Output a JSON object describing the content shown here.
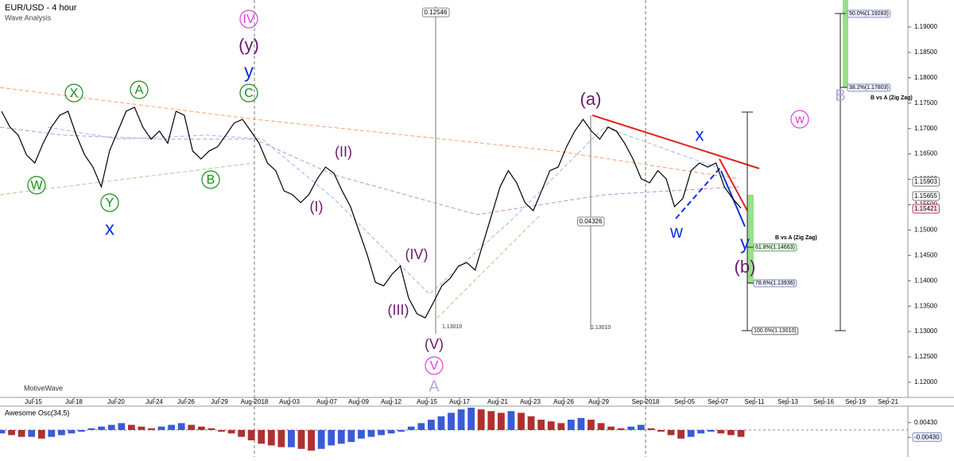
{
  "header": {
    "title": "EUR/USD - 4 hour",
    "subtitle": "Wave Analysis",
    "brand": "MotiveWave"
  },
  "chart_data": [
    {
      "type": "line",
      "color": "#000000",
      "values": [
        1.1734,
        1.1703,
        1.1687,
        1.1648,
        1.1632,
        1.1671,
        1.1703,
        1.1726,
        1.1734,
        1.1687,
        1.1648,
        1.1624,
        1.1585,
        1.1656,
        1.1695,
        1.1734,
        1.1742,
        1.1703,
        1.1679,
        1.1695,
        1.1671,
        1.1734,
        1.1726,
        1.1656,
        1.164,
        1.1656,
        1.1664,
        1.1687,
        1.1711,
        1.1718,
        1.1695,
        1.1671,
        1.1632,
        1.1617,
        1.1577,
        1.157,
        1.1554,
        1.157,
        1.1601,
        1.1624,
        1.1612,
        1.1577,
        1.1546,
        1.1499,
        1.1452,
        1.1397,
        1.139,
        1.1413,
        1.1429,
        1.1366,
        1.1335,
        1.1327,
        1.1358,
        1.139,
        1.1405,
        1.1429,
        1.1436,
        1.1421,
        1.1476,
        1.153,
        1.1585,
        1.1617,
        1.1593,
        1.1554,
        1.1538,
        1.1577,
        1.1617,
        1.1624,
        1.1664,
        1.1695,
        1.1718,
        1.1695,
        1.1679,
        1.1703,
        1.1695,
        1.1671,
        1.164,
        1.1601,
        1.1593,
        1.1617,
        1.1601,
        1.1546,
        1.1562,
        1.1617,
        1.1632,
        1.1624,
        1.1632,
        1.1585,
        1.1562,
        1.1543
      ],
      "ylim": [
        1.11702,
        1.19532
      ],
      "yticks": [
        {
          "value": 1.12,
          "label": "1.12000"
        },
        {
          "value": 1.125,
          "label": "1.12500"
        },
        {
          "value": 1.13,
          "label": "1.13000"
        },
        {
          "value": 1.135,
          "label": "1.13500"
        },
        {
          "value": 1.14,
          "label": "1.14000"
        },
        {
          "value": 1.145,
          "label": "1.14500"
        },
        {
          "value": 1.15,
          "label": "1.15000"
        },
        {
          "value": 1.155,
          "label": "1.15500"
        },
        {
          "value": 1.16,
          "label": "1.16000"
        },
        {
          "value": 1.165,
          "label": "1.16500"
        },
        {
          "value": 1.17,
          "label": "1.17000"
        },
        {
          "value": 1.175,
          "label": "1.17500"
        },
        {
          "value": 1.18,
          "label": "1.18000"
        },
        {
          "value": 1.185,
          "label": "1.18500"
        },
        {
          "value": 1.19,
          "label": "1.19000"
        }
      ],
      "x_labels": [
        "Jul-15",
        "Jul-18",
        "Jul-20",
        "Jul-24",
        "Jul-26",
        "Jul-29",
        "Aug-2018",
        "Aug-03",
        "Aug-07",
        "Aug-09",
        "Aug-12",
        "Aug-15",
        "Aug-17",
        "Aug-21",
        "Aug-23",
        "Aug-26",
        "Aug-29",
        "Sep-2018",
        "Sep-05",
        "Sep-07",
        "Sep-11",
        "Sep-13",
        "Sep-16",
        "Sep-19",
        "Sep-21"
      ],
      "annotations": [
        "IV",
        "(y)",
        "y",
        "C",
        "X",
        "A",
        "W",
        "B",
        "Y",
        "x",
        "(II)",
        "(I)",
        "(IV)",
        "(III)",
        "(V)",
        "V",
        "A",
        "(a)",
        "x",
        "w",
        "y",
        "(b)",
        "w",
        "B"
      ],
      "price_labels": [
        "1.15903",
        "1.15655",
        "1.15421"
      ],
      "measure_labels": [
        "0.12546",
        "0.04326",
        "1.13010",
        "1.13010"
      ],
      "fib_labels": [
        "50.0%(1.19283)",
        "38.2%(1.17803)",
        "B vs A (Zig Zag)",
        "B vs A (Zig Zag)",
        "61.8%(1.14663)",
        "78.6%(1.13936)",
        "100.0%(1.13010)"
      ]
    },
    {
      "type": "bar",
      "title": "Awesome Osc(34,5)",
      "up_color": "#3a5bd8",
      "down_color": "#b03030",
      "values": [
        -0.002,
        -0.003,
        -0.004,
        -0.004,
        -0.005,
        -0.004,
        -0.003,
        -0.002,
        -0.001,
        0.001,
        0.002,
        0.003,
        0.004,
        0.003,
        0.002,
        0.001,
        0.002,
        0.003,
        0.004,
        0.003,
        0.002,
        0.001,
        -0.001,
        -0.002,
        -0.004,
        -0.006,
        -0.008,
        -0.009,
        -0.01,
        -0.01,
        -0.011,
        -0.012,
        -0.011,
        -0.009,
        -0.008,
        -0.007,
        -0.005,
        -0.004,
        -0.003,
        -0.002,
        -0.001,
        0.002,
        0.004,
        0.006,
        0.008,
        0.01,
        0.012,
        0.013,
        0.012,
        0.011,
        0.01,
        0.011,
        0.01,
        0.008,
        0.006,
        0.005,
        0.004,
        0.006,
        0.007,
        0.006,
        0.004,
        0.002,
        0.001,
        0.002,
        0.003,
        0.001,
        -0.001,
        -0.003,
        -0.005,
        -0.004,
        -0.002,
        -0.001,
        -0.002,
        -0.003,
        -0.004
      ],
      "ylim": [
        -0.0125,
        0.0125
      ],
      "yticks": [
        {
          "value": 0.0043,
          "label": "0.00430"
        },
        {
          "value": -0.0043,
          "label": "-0.00430"
        }
      ]
    }
  ]
}
